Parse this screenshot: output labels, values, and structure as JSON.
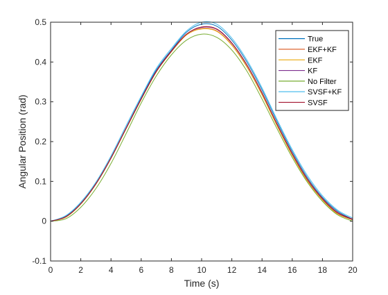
{
  "chart_data": {
    "type": "line",
    "xlabel": "Time (s)",
    "ylabel": "Angular Position (rad)",
    "xlim": [
      0,
      20
    ],
    "ylim": [
      -0.1,
      0.5
    ],
    "xticks": [
      0,
      2,
      4,
      6,
      8,
      10,
      12,
      14,
      16,
      18,
      20
    ],
    "yticks": [
      -0.1,
      0,
      0.1,
      0.2,
      0.3,
      0.4,
      0.5
    ],
    "grid": false,
    "legend_position": "top-right",
    "x": [
      0,
      1,
      2,
      3,
      4,
      5,
      6,
      7,
      8,
      9,
      10,
      11,
      12,
      13,
      14,
      15,
      16,
      17,
      18,
      19,
      20
    ],
    "series": [
      {
        "name": "True",
        "color": "#0072BD",
        "values": [
          0.0,
          0.012,
          0.045,
          0.095,
          0.16,
          0.235,
          0.31,
          0.38,
          0.43,
          0.475,
          0.495,
          0.49,
          0.455,
          0.4,
          0.33,
          0.25,
          0.175,
          0.11,
          0.06,
          0.025,
          0.005
        ]
      },
      {
        "name": "EKF+KF",
        "color": "#D95319",
        "values": [
          0.0,
          0.01,
          0.043,
          0.093,
          0.158,
          0.233,
          0.307,
          0.376,
          0.426,
          0.468,
          0.484,
          0.478,
          0.443,
          0.388,
          0.318,
          0.24,
          0.166,
          0.102,
          0.054,
          0.019,
          0.003
        ]
      },
      {
        "name": "EKF",
        "color": "#EDB120",
        "values": [
          0.0,
          0.01,
          0.043,
          0.093,
          0.158,
          0.232,
          0.306,
          0.375,
          0.426,
          0.468,
          0.483,
          0.477,
          0.442,
          0.387,
          0.317,
          0.239,
          0.165,
          0.101,
          0.053,
          0.018,
          0.003
        ]
      },
      {
        "name": "KF",
        "color": "#7E2F8E",
        "values": [
          0.0,
          0.011,
          0.044,
          0.094,
          0.159,
          0.234,
          0.308,
          0.377,
          0.428,
          0.47,
          0.487,
          0.482,
          0.447,
          0.392,
          0.322,
          0.243,
          0.169,
          0.105,
          0.056,
          0.021,
          0.004
        ]
      },
      {
        "name": "No Filter",
        "color": "#77AC30",
        "values": [
          0.0,
          0.006,
          0.035,
          0.082,
          0.145,
          0.22,
          0.297,
          0.365,
          0.418,
          0.455,
          0.47,
          0.462,
          0.43,
          0.377,
          0.307,
          0.232,
          0.16,
          0.098,
          0.05,
          0.016,
          0.0
        ]
      },
      {
        "name": "SVSF+KF",
        "color": "#4DBEEE",
        "values": [
          0.0,
          0.014,
          0.048,
          0.098,
          0.164,
          0.24,
          0.314,
          0.384,
          0.434,
          0.478,
          0.5,
          0.495,
          0.46,
          0.405,
          0.335,
          0.255,
          0.18,
          0.115,
          0.064,
          0.028,
          0.008
        ]
      },
      {
        "name": "SVSF",
        "color": "#A2142F",
        "values": [
          0.0,
          0.011,
          0.044,
          0.094,
          0.159,
          0.233,
          0.307,
          0.376,
          0.427,
          0.47,
          0.488,
          0.483,
          0.448,
          0.393,
          0.323,
          0.244,
          0.17,
          0.106,
          0.057,
          0.022,
          0.005
        ]
      }
    ]
  }
}
